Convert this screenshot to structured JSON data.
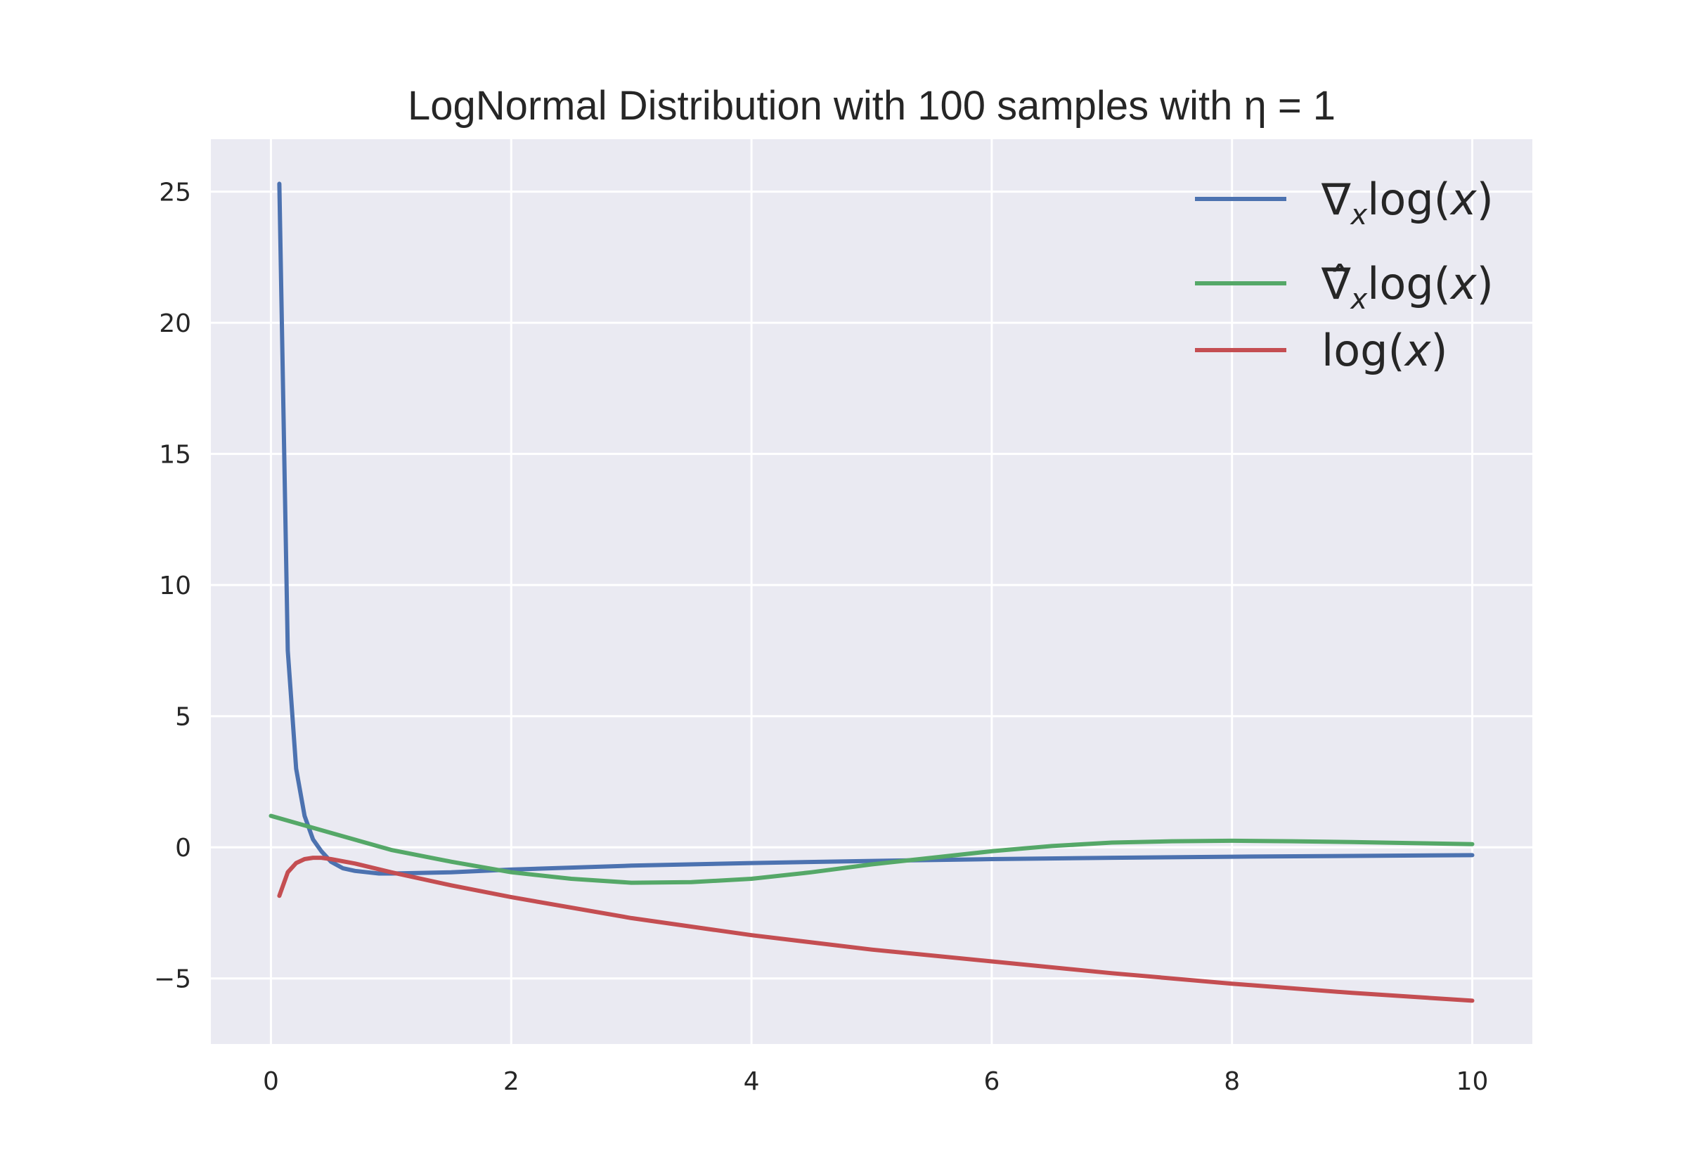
{
  "chart_data": {
    "type": "line",
    "title": "LogNormal Distribution with 100 samples with η = 1",
    "xlabel": "",
    "ylabel": "",
    "xlim": [
      -0.5,
      10.5
    ],
    "ylim": [
      -7.5,
      27
    ],
    "xticks": [
      0,
      2,
      4,
      6,
      8,
      10
    ],
    "xtick_labels": [
      "0",
      "2",
      "4",
      "6",
      "8",
      "10"
    ],
    "yticks": [
      -5,
      0,
      5,
      10,
      15,
      20,
      25
    ],
    "ytick_labels": [
      "−5",
      "0",
      "5",
      "10",
      "15",
      "20",
      "25"
    ],
    "grid": true,
    "legend_position": "top-right",
    "colors": {
      "background": "#eaeaf2",
      "grid": "#ffffff",
      "blue": "#4c72b0",
      "green": "#55a868",
      "red": "#c44e52"
    },
    "series": [
      {
        "name": "∇xlog(x)",
        "color": "#4c72b0",
        "x": [
          0.07,
          0.14,
          0.21,
          0.28,
          0.35,
          0.42,
          0.5,
          0.6,
          0.7,
          0.8,
          0.9,
          1.0,
          1.5,
          2.0,
          3.0,
          4.0,
          5.0,
          6.0,
          7.0,
          8.0,
          9.0,
          10.0
        ],
        "y": [
          25.3,
          7.5,
          3.0,
          1.2,
          0.3,
          -0.15,
          -0.55,
          -0.8,
          -0.9,
          -0.95,
          -1.0,
          -1.0,
          -0.95,
          -0.85,
          -0.7,
          -0.6,
          -0.52,
          -0.45,
          -0.4,
          -0.36,
          -0.33,
          -0.3
        ]
      },
      {
        "name": "∇̂xlog(x)",
        "color": "#55a868",
        "x": [
          0,
          0.5,
          1.0,
          1.5,
          2.0,
          2.5,
          3.0,
          3.5,
          4.0,
          4.5,
          5.0,
          5.5,
          6.0,
          6.5,
          7.0,
          7.5,
          8.0,
          8.5,
          9.0,
          9.5,
          10.0
        ],
        "y": [
          1.2,
          0.55,
          -0.1,
          -0.55,
          -0.95,
          -1.2,
          -1.35,
          -1.33,
          -1.2,
          -0.95,
          -0.65,
          -0.4,
          -0.15,
          0.05,
          0.18,
          0.23,
          0.25,
          0.23,
          0.2,
          0.16,
          0.12
        ]
      },
      {
        "name": "log(x)",
        "color": "#c44e52",
        "x": [
          0.07,
          0.14,
          0.21,
          0.28,
          0.35,
          0.42,
          0.5,
          0.7,
          1.0,
          1.5,
          2.0,
          3.0,
          4.0,
          5.0,
          6.0,
          7.0,
          8.0,
          9.0,
          10.0
        ],
        "y": [
          -1.85,
          -0.95,
          -0.6,
          -0.45,
          -0.4,
          -0.4,
          -0.45,
          -0.62,
          -0.95,
          -1.45,
          -1.9,
          -2.7,
          -3.35,
          -3.9,
          -4.35,
          -4.8,
          -5.2,
          -5.55,
          -5.85
        ]
      }
    ]
  },
  "legend": [
    {
      "base": "∇",
      "sub": "x",
      "rest": "log(",
      "var": "x",
      "close": ")"
    },
    {
      "base": "∇̂",
      "sub": "x",
      "rest": "log(",
      "var": "x",
      "close": ")"
    },
    {
      "base": "",
      "sub": "",
      "rest": "log(",
      "var": "x",
      "close": ")"
    }
  ]
}
